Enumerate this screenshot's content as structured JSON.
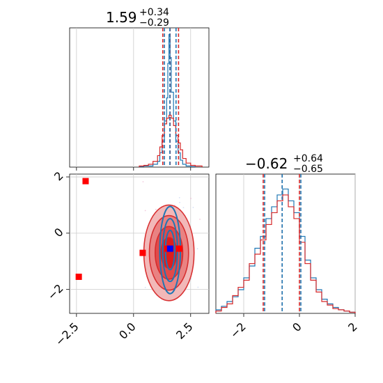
{
  "chart_data": [
    {
      "panel": "marginal-param-1",
      "type": "histogram",
      "title_median": "1.59",
      "title_plus": "+0.34",
      "title_minus": "−0.29",
      "xlim": [
        -2.8,
        3.3
      ],
      "grid": true,
      "series": [
        {
          "color": "#1f77b4",
          "bin_edges": [
            0.25,
            0.45,
            0.65,
            0.85,
            1.05,
            1.15,
            1.25,
            1.35,
            1.45,
            1.5,
            1.55,
            1.6,
            1.65,
            1.75,
            1.85,
            1.95,
            2.05,
            2.15,
            2.3,
            2.5,
            2.7
          ],
          "counts": [
            0.01,
            0.02,
            0.02,
            0.05,
            0.1,
            0.25,
            0.45,
            0.8,
            1.2,
            1.8,
            2.3,
            1.9,
            1.3,
            0.8,
            0.45,
            0.25,
            0.12,
            0.05,
            0.02,
            0.01
          ]
        },
        {
          "color": "#d62728",
          "bin_edges": [
            0.25,
            0.45,
            0.65,
            0.85,
            1.05,
            1.15,
            1.25,
            1.35,
            1.45,
            1.55,
            1.65,
            1.75,
            1.85,
            1.95,
            2.05,
            2.15,
            2.3,
            2.5,
            2.7,
            3.0
          ],
          "counts": [
            0.02,
            0.03,
            0.05,
            0.1,
            0.2,
            0.35,
            0.55,
            0.75,
            0.85,
            0.9,
            0.85,
            0.72,
            0.55,
            0.42,
            0.3,
            0.15,
            0.07,
            0.03,
            0.02
          ]
        }
      ],
      "quantile_lines": [
        {
          "color": "#d62728",
          "values": [
            1.28,
            1.6,
            1.97
          ]
        },
        {
          "color": "#1f77b4",
          "values": [
            1.35,
            1.59,
            1.86
          ]
        }
      ]
    },
    {
      "panel": "joint-param-1-vs-param-2",
      "type": "contour-scatter",
      "xlim": [
        -2.8,
        3.3
      ],
      "ylim": [
        -2.85,
        2.1
      ],
      "x_ticks": [
        "−2.5",
        "0.0",
        "2.5"
      ],
      "y_ticks": [
        "−2",
        "0",
        "2"
      ],
      "grid": true,
      "scatter_marker_colors": [
        "#ff0000",
        "#0000ff"
      ],
      "red_points": [
        {
          "x": -2.1,
          "y": 1.85
        },
        {
          "x": -2.4,
          "y": -1.55
        },
        {
          "x": 0.4,
          "y": -0.7
        },
        {
          "x": 2.0,
          "y": -0.55
        },
        {
          "x": 1.5,
          "y": -0.55
        }
      ],
      "blue_points": [
        {
          "x": 1.6,
          "y": -0.55
        }
      ],
      "contours": [
        {
          "color": "#d62728",
          "center": [
            1.55,
            -0.7
          ],
          "half_width": [
            1.1,
            1.7
          ]
        },
        {
          "color": "#1f77b4",
          "center": [
            1.6,
            -0.6
          ],
          "half_width": [
            0.45,
            1.55
          ]
        }
      ]
    },
    {
      "panel": "marginal-param-2",
      "type": "histogram",
      "title_median": "−0.62",
      "title_plus": "+0.64",
      "title_minus": "−0.65",
      "xlim": [
        -3.0,
        2.0
      ],
      "x_ticks": [
        "−2",
        "0",
        "2"
      ],
      "grid": true,
      "series": [
        {
          "color": "#1f77b4",
          "bin_edges": [
            -3.0,
            -2.8,
            -2.6,
            -2.4,
            -2.2,
            -2.0,
            -1.8,
            -1.6,
            -1.4,
            -1.2,
            -1.0,
            -0.8,
            -0.6,
            -0.4,
            -0.2,
            0.0,
            0.2,
            0.4,
            0.6,
            0.8,
            1.0,
            1.2,
            1.4,
            1.6,
            1.8,
            2.0
          ],
          "counts": [
            0.03,
            0.06,
            0.1,
            0.14,
            0.2,
            0.3,
            0.4,
            0.55,
            0.65,
            0.8,
            0.9,
            1.0,
            1.05,
            0.95,
            0.85,
            0.65,
            0.45,
            0.3,
            0.2,
            0.12,
            0.08,
            0.05,
            0.03,
            0.02,
            0.01
          ]
        },
        {
          "color": "#d62728",
          "bin_edges": [
            -3.0,
            -2.8,
            -2.6,
            -2.4,
            -2.2,
            -2.0,
            -1.8,
            -1.6,
            -1.4,
            -1.2,
            -1.0,
            -0.8,
            -0.6,
            -0.4,
            -0.2,
            0.0,
            0.2,
            0.4,
            0.6,
            0.8,
            1.0,
            1.2,
            1.4,
            1.6,
            1.8,
            2.0
          ],
          "counts": [
            0.02,
            0.05,
            0.08,
            0.15,
            0.22,
            0.28,
            0.42,
            0.5,
            0.62,
            0.75,
            0.85,
            0.95,
            1.0,
            0.9,
            0.8,
            0.6,
            0.42,
            0.28,
            0.18,
            0.1,
            0.07,
            0.04,
            0.03,
            0.02,
            0.01
          ]
        }
      ],
      "quantile_lines": [
        {
          "color": "#d62728",
          "values": [
            -1.3,
            -0.62,
            0.0
          ]
        },
        {
          "color": "#1f77b4",
          "values": [
            -1.25,
            -0.62,
            0.05
          ]
        }
      ]
    }
  ]
}
